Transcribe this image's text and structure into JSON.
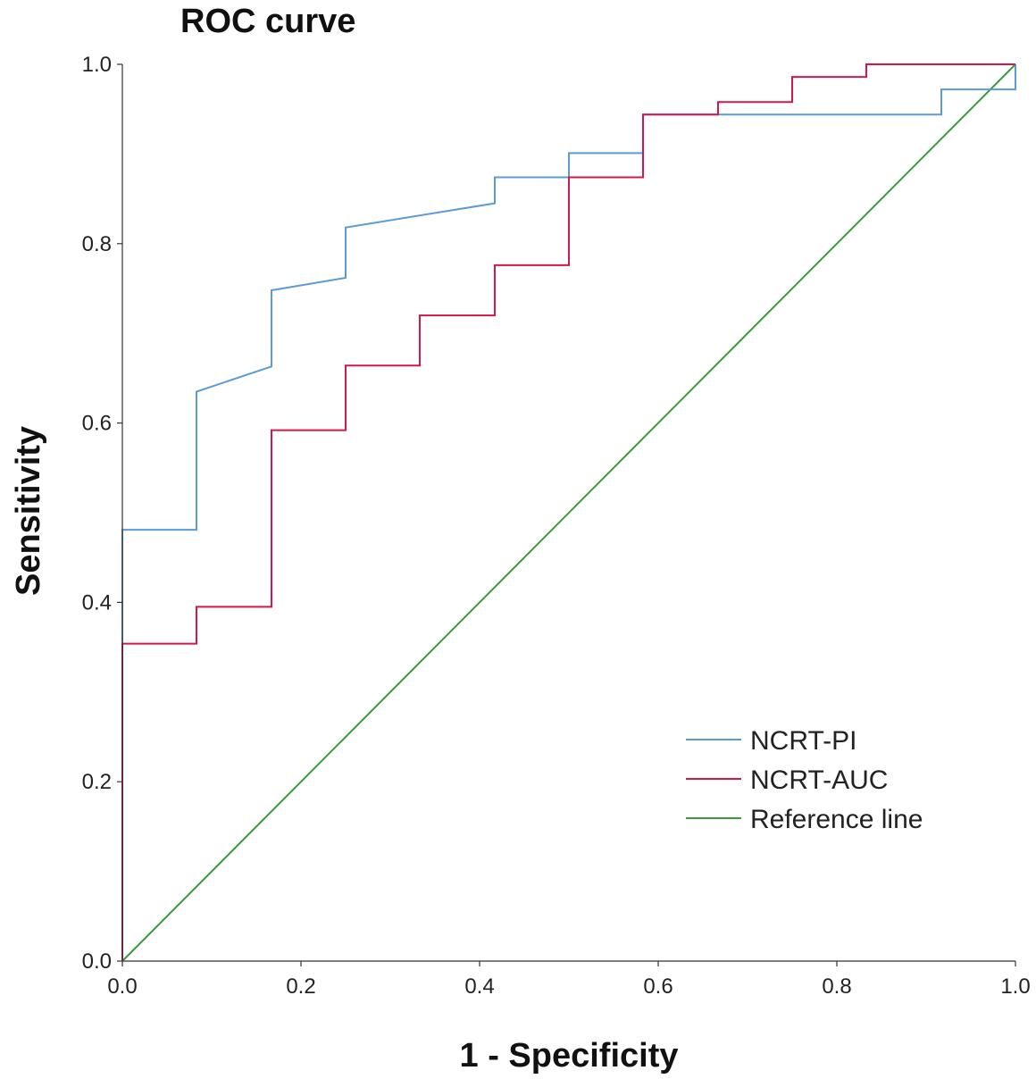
{
  "chart_data": {
    "type": "line",
    "title": "ROC curve",
    "xlabel": "1 - Specificity",
    "ylabel": "Sensitivity",
    "xlim": [
      0,
      1
    ],
    "ylim": [
      0,
      1
    ],
    "grid": false,
    "legend_position": "bottom-right",
    "x_ticks": [
      "0.0",
      "0.2",
      "0.4",
      "0.6",
      "0.8",
      "1.0"
    ],
    "y_ticks": [
      "0.0",
      "0.2",
      "0.4",
      "0.6",
      "0.8",
      "1.0"
    ],
    "series": [
      {
        "name": "NCRT-PI",
        "color": "#5b9bd5",
        "points": [
          [
            0,
            0
          ],
          [
            0,
            0.481
          ],
          [
            0.083,
            0.481
          ],
          [
            0.083,
            0.635
          ],
          [
            0.167,
            0.663
          ],
          [
            0.167,
            0.748
          ],
          [
            0.25,
            0.762
          ],
          [
            0.25,
            0.818
          ],
          [
            0.417,
            0.845
          ],
          [
            0.417,
            0.874
          ],
          [
            0.5,
            0.874
          ],
          [
            0.5,
            0.901
          ],
          [
            0.583,
            0.901
          ],
          [
            0.583,
            0.944
          ],
          [
            0.917,
            0.944
          ],
          [
            0.917,
            0.972
          ],
          [
            1,
            0.972
          ],
          [
            1,
            1
          ]
        ]
      },
      {
        "name": "NCRT-AUC",
        "color": "#d0184b",
        "points": [
          [
            0,
            0
          ],
          [
            0,
            0.354
          ],
          [
            0.083,
            0.354
          ],
          [
            0.083,
            0.395
          ],
          [
            0.167,
            0.395
          ],
          [
            0.167,
            0.592
          ],
          [
            0.25,
            0.592
          ],
          [
            0.25,
            0.664
          ],
          [
            0.333,
            0.664
          ],
          [
            0.333,
            0.72
          ],
          [
            0.417,
            0.72
          ],
          [
            0.417,
            0.776
          ],
          [
            0.5,
            0.776
          ],
          [
            0.5,
            0.874
          ],
          [
            0.583,
            0.874
          ],
          [
            0.583,
            0.944
          ],
          [
            0.667,
            0.944
          ],
          [
            0.667,
            0.958
          ],
          [
            0.75,
            0.958
          ],
          [
            0.75,
            0.986
          ],
          [
            0.833,
            0.986
          ],
          [
            0.833,
            1
          ],
          [
            1,
            1
          ]
        ]
      },
      {
        "name": "Reference line",
        "color": "#3a9a3a",
        "points": [
          [
            0,
            0
          ],
          [
            1,
            1
          ]
        ]
      }
    ]
  }
}
